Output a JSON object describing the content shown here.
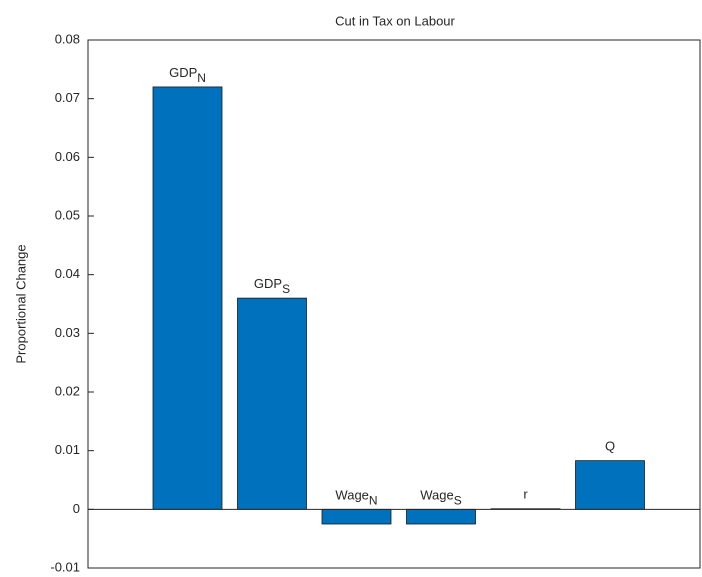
{
  "chart_data": {
    "type": "bar",
    "title": "Cut in Tax on Labour",
    "y_label": "Proportional Change",
    "categories": [
      "GDP",
      "GDP",
      "Wage",
      "Wage",
      "r",
      "Q"
    ],
    "category_subscripts": [
      "N",
      "S",
      "N",
      "S",
      null,
      null
    ],
    "values": [
      0.072,
      0.036,
      -0.0025,
      -0.0025,
      0.0001,
      0.0083
    ],
    "color": "#0072bd",
    "ylim": [
      -0.01,
      0.08
    ],
    "yticks": [
      -0.01,
      0,
      0.01,
      0.02,
      0.03,
      0.04,
      0.05,
      0.06,
      0.07,
      0.08
    ]
  }
}
